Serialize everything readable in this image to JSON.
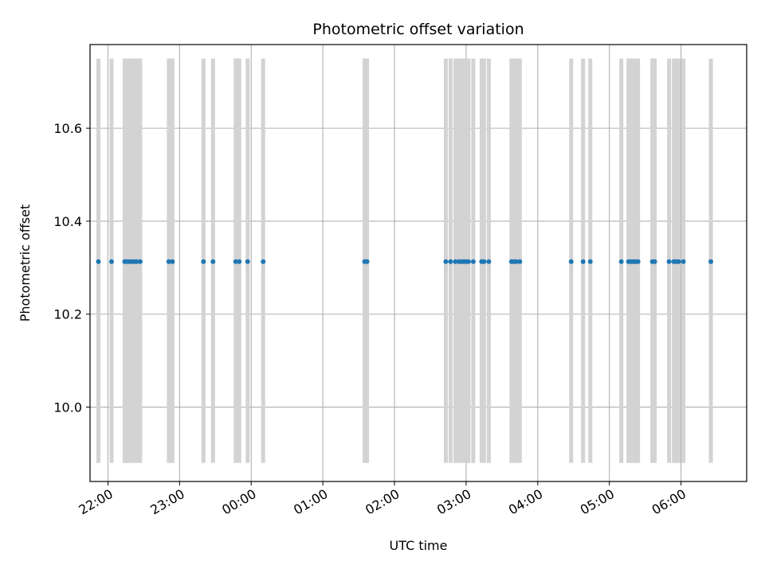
{
  "chart_data": {
    "type": "scatter",
    "title": "Photometric offset variation",
    "xlabel": "UTC time",
    "ylabel": "Photometric offset",
    "x_start": "21:45",
    "x_end": "06:55",
    "ylim": [
      9.84,
      10.78
    ],
    "x_ticks": [
      "22:00",
      "23:00",
      "00:00",
      "01:00",
      "02:00",
      "03:00",
      "04:00",
      "05:00",
      "06:00"
    ],
    "y_ticks": [
      10.0,
      10.2,
      10.4,
      10.6
    ],
    "grid": true,
    "band_range": [
      9.88,
      10.75
    ],
    "band_color": "#d3d3d3",
    "point_color": "#1f77b4",
    "series": [
      {
        "x": [
          "21:52",
          "22:03",
          "22:14",
          "22:16",
          "22:18",
          "22:20",
          "22:22",
          "22:24",
          "22:27",
          "22:51",
          "22:54",
          "23:20",
          "23:28",
          "23:47",
          "23:50",
          "23:57",
          "00:10",
          "01:35",
          "01:37",
          "02:43",
          "02:47",
          "02:51",
          "02:54",
          "02:56",
          "02:58",
          "03:00",
          "03:02",
          "03:06",
          "03:13",
          "03:15",
          "03:19",
          "03:38",
          "03:40",
          "03:42",
          "03:45",
          "04:28",
          "04:38",
          "04:44",
          "05:10",
          "05:16",
          "05:18",
          "05:20",
          "05:22",
          "05:24",
          "05:36",
          "05:38",
          "05:50",
          "05:54",
          "05:56",
          "05:58",
          "06:02",
          "06:25"
        ],
        "y": [
          10.313,
          10.313,
          10.313,
          10.313,
          10.313,
          10.313,
          10.313,
          10.313,
          10.313,
          10.313,
          10.313,
          10.313,
          10.313,
          10.313,
          10.313,
          10.313,
          10.313,
          10.313,
          10.313,
          10.313,
          10.313,
          10.313,
          10.313,
          10.313,
          10.313,
          10.313,
          10.313,
          10.313,
          10.313,
          10.313,
          10.313,
          10.313,
          10.313,
          10.313,
          10.313,
          10.313,
          10.313,
          10.313,
          10.313,
          10.313,
          10.313,
          10.313,
          10.313,
          10.313,
          10.313,
          10.313,
          10.313,
          10.313,
          10.313,
          10.313,
          10.313,
          10.313
        ]
      }
    ]
  }
}
